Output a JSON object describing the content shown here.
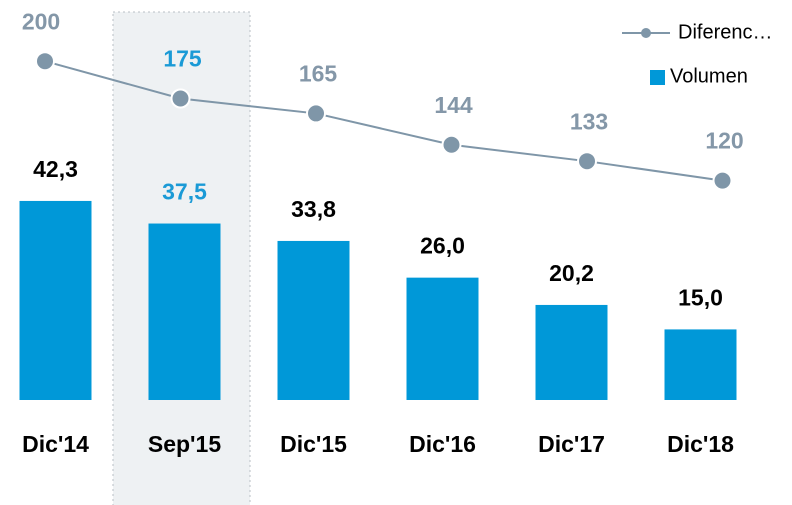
{
  "chart_data": {
    "type": "bar-line",
    "categories": [
      "Dic'14",
      "Sep'15",
      "Dic'15",
      "Dic'16",
      "Dic'17",
      "Dic'18"
    ],
    "series": [
      {
        "name": "Diferenc…",
        "type": "line",
        "axis": "y2",
        "color": "#7f96a8",
        "values": [
          200,
          175,
          165,
          144,
          133,
          120
        ]
      },
      {
        "name": "Volumen",
        "type": "bar",
        "color": "#0098d8",
        "values": [
          42.3,
          37.5,
          33.8,
          26.0,
          20.2,
          15.0
        ],
        "value_labels": [
          "42,3",
          "37,5",
          "33,8",
          "26,0",
          "20,2",
          "15,0"
        ]
      }
    ],
    "ylim": [
      0,
      85
    ],
    "y2lim": [
      -27,
      241
    ],
    "legend": "top-right"
  }
}
